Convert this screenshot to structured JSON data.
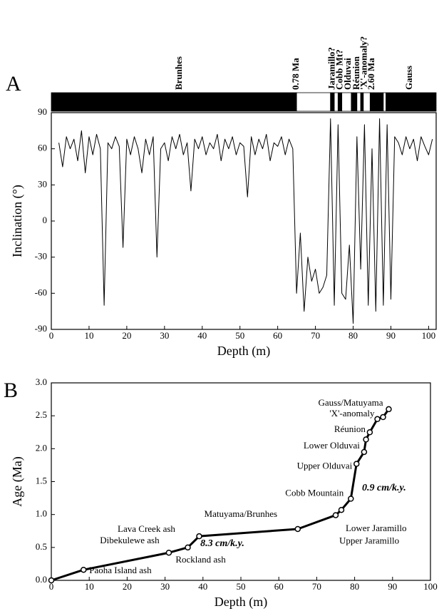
{
  "chart_data": [
    {
      "type": "line",
      "panel": "A",
      "xlabel": "Depth (m)",
      "ylabel": "Inclination (°)",
      "xlim": [
        0,
        102
      ],
      "ylim": [
        -90,
        90
      ],
      "xticks": [
        0,
        10,
        20,
        30,
        40,
        50,
        60,
        70,
        80,
        90,
        100
      ],
      "yticks": [
        -90,
        -60,
        -30,
        0,
        30,
        60,
        90
      ],
      "color": "#000000",
      "line_width": 1,
      "markers": false,
      "x": [
        2,
        3,
        4,
        5,
        6,
        7,
        8,
        9,
        10,
        11,
        12,
        13,
        14,
        15,
        16,
        17,
        18,
        19,
        20,
        21,
        22,
        23,
        24,
        25,
        26,
        27,
        28,
        29,
        30,
        31,
        32,
        33,
        34,
        35,
        36,
        37,
        38,
        39,
        40,
        41,
        42,
        43,
        44,
        45,
        46,
        47,
        48,
        49,
        50,
        51,
        52,
        53,
        54,
        55,
        56,
        57,
        58,
        59,
        60,
        61,
        62,
        63,
        64,
        65,
        66,
        67,
        68,
        69,
        70,
        71,
        72,
        73,
        74,
        75,
        76,
        77,
        78,
        79,
        80,
        81,
        82,
        83,
        84,
        85,
        86,
        87,
        88,
        89,
        90,
        91,
        92,
        93,
        94,
        95,
        96,
        97,
        98,
        99,
        100,
        101
      ],
      "values": [
        65,
        45,
        70,
        60,
        68,
        50,
        75,
        40,
        70,
        55,
        72,
        60,
        -70,
        65,
        60,
        70,
        62,
        -22,
        68,
        55,
        70,
        60,
        40,
        68,
        55,
        70,
        -30,
        60,
        65,
        50,
        70,
        60,
        72,
        55,
        65,
        25,
        68,
        60,
        70,
        55,
        65,
        60,
        72,
        50,
        68,
        60,
        70,
        55,
        65,
        62,
        20,
        70,
        55,
        68,
        60,
        72,
        50,
        65,
        62,
        70,
        55,
        68,
        60,
        -60,
        -10,
        -75,
        -30,
        -50,
        -40,
        -60,
        -55,
        -45,
        85,
        -70,
        80,
        -60,
        -65,
        -20,
        -85,
        70,
        -40,
        80,
        -70,
        60,
        -75,
        85,
        -70,
        80,
        -65,
        70,
        65,
        55,
        70,
        60,
        68,
        50,
        70,
        62,
        55,
        68
      ],
      "polarity": [
        {
          "from": 0,
          "to": 65,
          "color": "#000000"
        },
        {
          "from": 65,
          "to": 74,
          "color": "#ffffff"
        },
        {
          "from": 74,
          "to": 75,
          "color": "#000000"
        },
        {
          "from": 75,
          "to": 76,
          "color": "#ffffff"
        },
        {
          "from": 76,
          "to": 77,
          "color": "#000000"
        },
        {
          "from": 77,
          "to": 79.5,
          "color": "#ffffff"
        },
        {
          "from": 79.5,
          "to": 81,
          "color": "#000000"
        },
        {
          "from": 81,
          "to": 82,
          "color": "#ffffff"
        },
        {
          "from": 82,
          "to": 82.7,
          "color": "#000000"
        },
        {
          "from": 82.7,
          "to": 84.5,
          "color": "#ffffff"
        },
        {
          "from": 84.5,
          "to": 88,
          "color": "#000000"
        },
        {
          "from": 88,
          "to": 88.7,
          "color": "#ffffff"
        },
        {
          "from": 88.7,
          "to": 102,
          "color": "#000000"
        }
      ],
      "polarity_labels": [
        {
          "text": "Brunhes",
          "x": 34
        },
        {
          "text": "0.78 Ma",
          "x": 65
        },
        {
          "text": "Jaramillo?",
          "x": 74.5
        },
        {
          "text": "Cobb Mt?",
          "x": 76.6
        },
        {
          "text": "Olduvai",
          "x": 78.8
        },
        {
          "text": "Réunion",
          "x": 81
        },
        {
          "text": "'X'-anomaly?",
          "x": 83
        },
        {
          "text": "2.60 Ma",
          "x": 85
        },
        {
          "text": "Gauss",
          "x": 95
        }
      ]
    },
    {
      "type": "line",
      "panel": "B",
      "xlabel": "Depth (m)",
      "ylabel": "Age (Ma)",
      "xlim": [
        0,
        100
      ],
      "ylim": [
        0,
        3
      ],
      "xticks": [
        0,
        10,
        20,
        30,
        40,
        50,
        60,
        70,
        80,
        90,
        100
      ],
      "yticks": [
        {
          "value": 0,
          "label": "0.0"
        },
        0.5,
        {
          "value": 1,
          "label": "1.0"
        },
        1.5,
        {
          "value": 2,
          "label": "2.0"
        },
        2.5,
        {
          "value": 3,
          "label": "3.0"
        }
      ],
      "color": "#000000",
      "line_width": 3,
      "markers": true,
      "x": [
        0,
        8.5,
        31,
        36,
        39,
        65,
        75,
        76.5,
        79,
        80.5,
        82.5,
        83,
        84,
        86,
        87.5,
        89
      ],
      "values": [
        0,
        0.16,
        0.42,
        0.5,
        0.67,
        0.78,
        0.99,
        1.07,
        1.24,
        1.77,
        1.95,
        2.14,
        2.25,
        2.45,
        2.48,
        2.6
      ],
      "point_labels": [
        null,
        "Paoha Island ash",
        "Dibekulewe ash",
        "Rockland ash",
        "Lava Creek ash",
        "Matuyama/Brunhes",
        "Upper Jaramillo",
        "Lower Jaramillo",
        "Cobb Mountain",
        "Upper Olduvai",
        "Lower Olduvai",
        null,
        "Réunion",
        "'X'-anomaly",
        null,
        "Gauss/Matuyama"
      ],
      "annotations": [
        "8.3 cm/k.y.",
        "0.9 cm/k.y."
      ]
    }
  ]
}
